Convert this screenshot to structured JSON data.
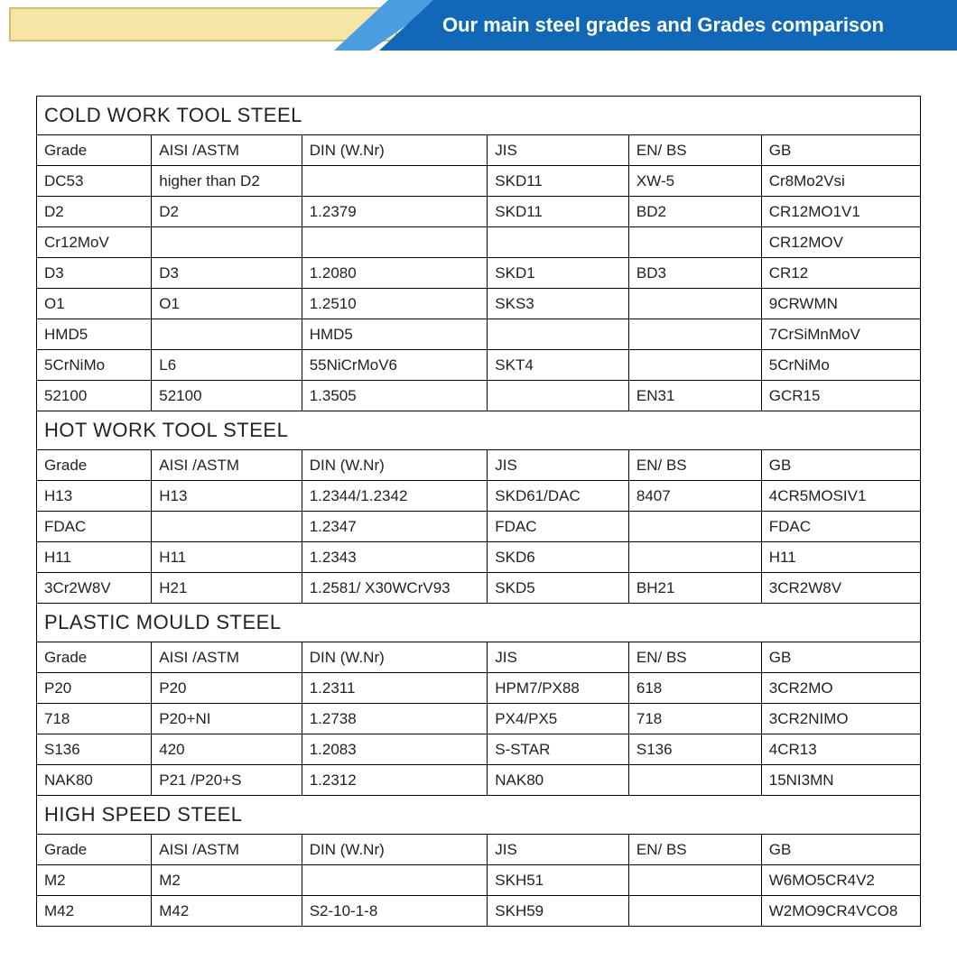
{
  "banner": {
    "title": "Our main steel grades and Grades comparison",
    "blue": "#1168b8",
    "lightblue": "#4a9de0",
    "yellow_bg": "#f5e6a8",
    "yellow_border": "#d4c068",
    "text_color": "#ffffff"
  },
  "tables": [
    {
      "title": "COLD WORK TOOL STEEL",
      "columns": [
        "Grade",
        "AISI   /ASTM",
        "DIN (W.Nr)",
        "JIS",
        "EN/ BS",
        "GB"
      ],
      "rows": [
        [
          "DC53",
          "higher than D2",
          "",
          "SKD11",
          "XW-5",
          "Cr8Mo2Vsi"
        ],
        [
          "D2",
          "D2",
          "1.2379",
          "SKD11",
          "BD2",
          "CR12MO1V1"
        ],
        [
          "Cr12MoV",
          "",
          "",
          "",
          "",
          "CR12MOV"
        ],
        [
          "D3",
          "D3",
          "1.2080",
          "SKD1",
          "BD3",
          "CR12"
        ],
        [
          "O1",
          "O1",
          "1.2510",
          "SKS3",
          "",
          "9CRWMN"
        ],
        [
          "HMD5",
          "",
          "HMD5",
          "",
          "",
          "7CrSiMnMoV"
        ],
        [
          "5CrNiMo",
          "L6",
          "55NiCrMoV6",
          "SKT4",
          "",
          "5CrNiMo"
        ],
        [
          "52100",
          "52100",
          "1.3505",
          "",
          "EN31",
          "GCR15"
        ]
      ]
    },
    {
      "title": "HOT WORK TOOL STEEL",
      "columns": [
        "Grade",
        "AISI   /ASTM",
        "DIN (W.Nr)",
        "JIS",
        "EN/ BS",
        "GB"
      ],
      "rows": [
        [
          "H13",
          "H13",
          "1.2344/1.2342",
          "SKD61/DAC",
          "8407",
          "4CR5MOSIV1"
        ],
        [
          "FDAC",
          "",
          "1.2347",
          "FDAC",
          "",
          "FDAC"
        ],
        [
          "H11",
          "H11",
          "1.2343",
          "SKD6",
          "",
          "H11"
        ],
        [
          "3Cr2W8V",
          "H21",
          "1.2581/ X30WCrV93",
          "SKD5",
          "BH21",
          "3CR2W8V"
        ]
      ]
    },
    {
      "title": "PLASTIC MOULD STEEL",
      "columns": [
        "Grade",
        "AISI   /ASTM",
        "DIN (W.Nr)",
        "JIS",
        "EN/ BS",
        "GB"
      ],
      "rows": [
        [
          "P20",
          "P20",
          "1.2311",
          "HPM7/PX88",
          "618",
          "3CR2MO"
        ],
        [
          "718",
          "P20+NI",
          "1.2738",
          "PX4/PX5",
          "718",
          "3CR2NIMO"
        ],
        [
          "S136",
          "420",
          "1.2083",
          "S-STAR",
          "S136",
          "4CR13"
        ],
        [
          "NAK80",
          "P21 /P20+S",
          "1.2312",
          "NAK80",
          "",
          "15NI3MN"
        ]
      ]
    },
    {
      "title": "HIGH SPEED STEEL",
      "columns": [
        "Grade",
        "AISI   /ASTM",
        "DIN (W.Nr)",
        "JIS",
        "EN/ BS",
        "GB"
      ],
      "rows": [
        [
          "M2",
          "M2",
          "",
          "SKH51",
          "",
          "W6MO5CR4V2"
        ],
        [
          "M42",
          "M42",
          "S2-10-1-8",
          "SKH59",
          "",
          "W2MO9CR4VCO8"
        ]
      ]
    }
  ]
}
